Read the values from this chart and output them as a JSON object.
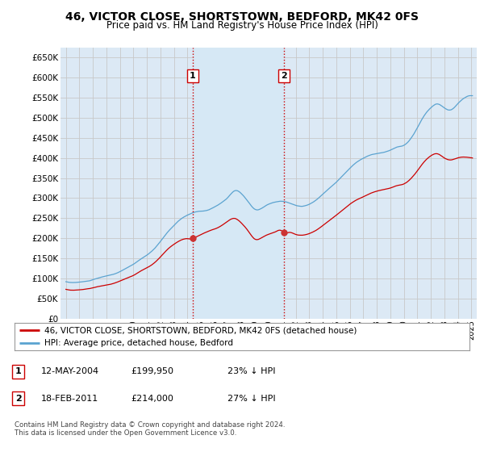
{
  "title": "46, VICTOR CLOSE, SHORTSTOWN, BEDFORD, MK42 0FS",
  "subtitle": "Price paid vs. HM Land Registry's House Price Index (HPI)",
  "ylim": [
    0,
    675000
  ],
  "yticks": [
    0,
    50000,
    100000,
    150000,
    200000,
    250000,
    300000,
    350000,
    400000,
    450000,
    500000,
    550000,
    600000,
    650000
  ],
  "xlim_start": 1994.6,
  "xlim_end": 2025.4,
  "xticks": [
    1995,
    1996,
    1997,
    1998,
    1999,
    2000,
    2001,
    2002,
    2003,
    2004,
    2005,
    2006,
    2007,
    2008,
    2009,
    2010,
    2011,
    2012,
    2013,
    2014,
    2015,
    2016,
    2017,
    2018,
    2019,
    2020,
    2021,
    2022,
    2023,
    2024,
    2025
  ],
  "hpi_color": "#5ba3d0",
  "price_color": "#cc0000",
  "shade_color": "#d6e8f5",
  "sale1_x": 2004.37,
  "sale1_y": 199950,
  "sale1_label": "1",
  "sale2_x": 2011.12,
  "sale2_y": 214000,
  "sale2_label": "2",
  "vline_color": "#cc0000",
  "legend_label_red": "46, VICTOR CLOSE, SHORTSTOWN, BEDFORD, MK42 0FS (detached house)",
  "legend_label_blue": "HPI: Average price, detached house, Bedford",
  "table_rows": [
    {
      "num": "1",
      "date": "12-MAY-2004",
      "price": "£199,950",
      "note": "23% ↓ HPI"
    },
    {
      "num": "2",
      "date": "18-FEB-2011",
      "price": "£214,000",
      "note": "27% ↓ HPI"
    }
  ],
  "footer": "Contains HM Land Registry data © Crown copyright and database right 2024.\nThis data is licensed under the Open Government Licence v3.0.",
  "bg_color": "#dce9f5",
  "plot_bg": "#ffffff",
  "grid_color": "#c8c8c8"
}
